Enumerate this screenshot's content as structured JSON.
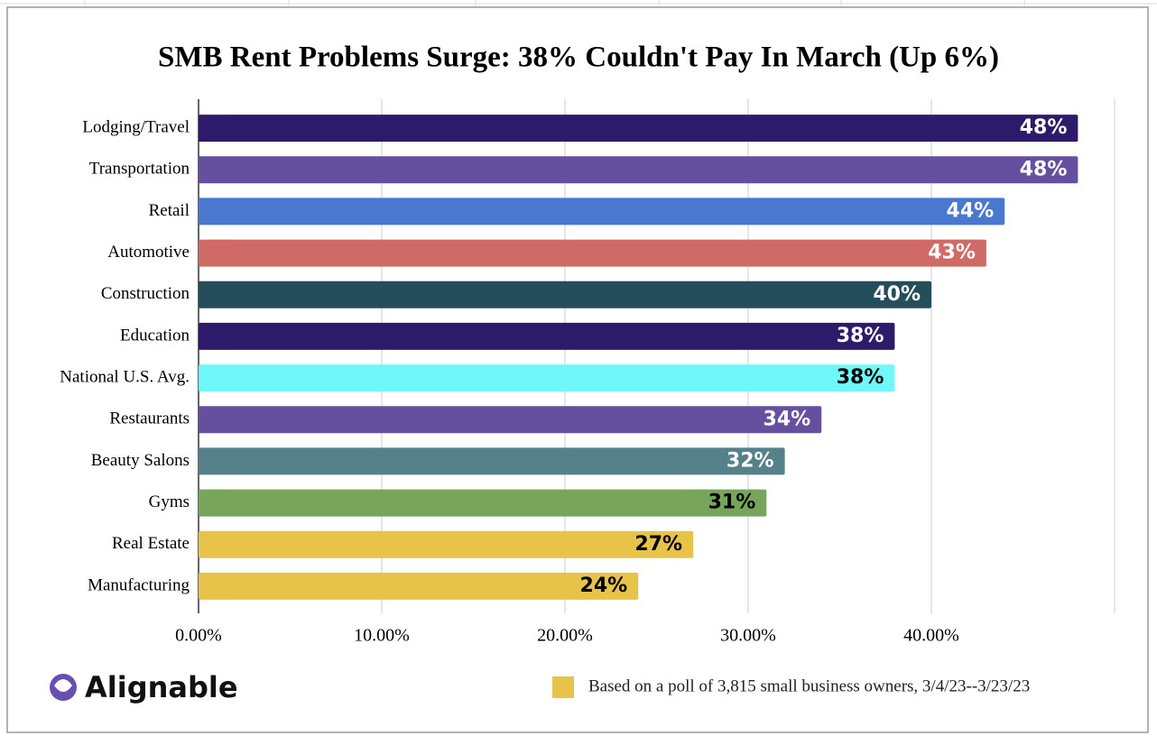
{
  "chart_data": {
    "type": "bar",
    "orientation": "horizontal",
    "title": "SMB Rent Problems Surge: 38% Couldn't Pay In March (Up 6%)",
    "categories": [
      "Lodging/Travel",
      "Transportation",
      "Retail",
      "Automotive",
      "Construction",
      "Education",
      "National U.S. Avg.",
      "Restaurants",
      "Beauty Salons",
      "Gyms",
      "Real Estate",
      "Manufacturing"
    ],
    "values": [
      48,
      48,
      44,
      43,
      40,
      38,
      38,
      34,
      32,
      31,
      27,
      24
    ],
    "value_labels": [
      "48%",
      "48%",
      "44%",
      "43%",
      "40%",
      "38%",
      "38%",
      "34%",
      "32%",
      "31%",
      "27%",
      "24%"
    ],
    "colors": [
      "#2e1a6b",
      "#6550a0",
      "#4a78d0",
      "#d06a66",
      "#234e5a",
      "#2e1a6b",
      "#6ff8fa",
      "#6550a0",
      "#54818a",
      "#76a55b",
      "#e8c34a",
      "#e8c34a"
    ],
    "xlim": [
      0,
      50
    ],
    "xticks": [
      {
        "value": 0,
        "label": "0.00%"
      },
      {
        "value": 10,
        "label": "10.00%"
      },
      {
        "value": 20,
        "label": "20.00%"
      },
      {
        "value": 30,
        "label": "30.00%"
      },
      {
        "value": 40,
        "label": "40.00%"
      }
    ],
    "grid": true,
    "note": "Based on a poll of 3,815 small business owners, 3/4/23--3/23/23",
    "note_color": "#e8c34a",
    "logo": "Alignable"
  }
}
